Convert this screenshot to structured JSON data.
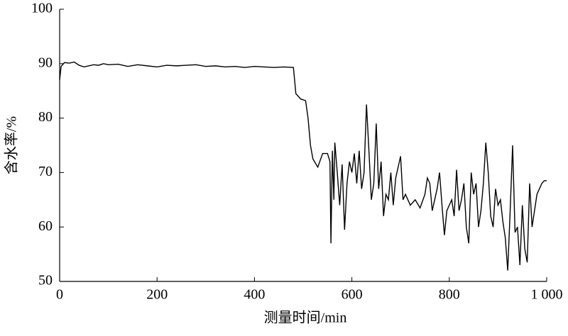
{
  "chart_data": {
    "type": "line",
    "xlabel": "测量时间/min",
    "ylabel": "含水率/%",
    "x": [
      0,
      3,
      10,
      20,
      30,
      40,
      50,
      60,
      70,
      80,
      90,
      100,
      120,
      140,
      160,
      180,
      200,
      220,
      240,
      260,
      280,
      300,
      320,
      340,
      360,
      380,
      400,
      420,
      440,
      460,
      480,
      485,
      495,
      505,
      510,
      515,
      520,
      530,
      540,
      550,
      555,
      557,
      560,
      563,
      565,
      570,
      575,
      580,
      585,
      590,
      595,
      600,
      605,
      610,
      615,
      620,
      625,
      630,
      635,
      640,
      645,
      650,
      655,
      660,
      665,
      670,
      675,
      680,
      685,
      690,
      700,
      705,
      710,
      720,
      730,
      740,
      750,
      755,
      760,
      765,
      770,
      775,
      780,
      785,
      790,
      795,
      800,
      805,
      810,
      815,
      820,
      825,
      830,
      835,
      840,
      845,
      850,
      855,
      860,
      865,
      870,
      875,
      880,
      885,
      890,
      895,
      900,
      905,
      910,
      915,
      920,
      925,
      930,
      935,
      940,
      945,
      950,
      955,
      960,
      965,
      970,
      975,
      980,
      985,
      990,
      995,
      1000
    ],
    "series": [
      {
        "name": "含水率",
        "color": "#000000",
        "values": [
          87,
          89.5,
          90.2,
          90.1,
          90.3,
          89.7,
          89.4,
          89.6,
          89.8,
          89.7,
          90,
          89.8,
          89.9,
          89.5,
          89.8,
          89.6,
          89.4,
          89.7,
          89.6,
          89.7,
          89.8,
          89.5,
          89.6,
          89.4,
          89.5,
          89.3,
          89.5,
          89.4,
          89.3,
          89.4,
          89.3,
          84.5,
          83.5,
          83.2,
          80,
          75,
          72.5,
          71,
          73.5,
          73.5,
          72,
          57,
          74,
          65,
          75.5,
          70,
          64,
          71.5,
          59.5,
          68,
          72,
          70,
          73.5,
          68,
          74,
          67,
          70,
          82.5,
          74,
          65,
          68,
          79,
          67,
          72,
          62,
          66,
          65,
          70,
          64,
          69,
          73,
          65,
          66,
          64,
          65,
          63.5,
          66,
          69,
          68,
          63,
          65,
          67,
          70,
          64,
          58.5,
          63,
          64,
          65,
          62,
          70.5,
          63,
          65,
          68,
          60,
          57,
          70,
          66,
          68,
          60,
          63,
          68,
          75.5,
          70,
          62,
          60,
          67,
          64,
          65,
          61,
          58,
          52,
          63,
          75,
          59,
          60,
          53,
          64,
          56,
          53.5,
          68,
          60,
          63,
          66,
          67,
          68,
          68.5,
          68.5
        ]
      }
    ],
    "xlim": [
      0,
      1000
    ],
    "ylim": [
      50,
      100
    ],
    "xticks": [
      0,
      200,
      400,
      600,
      800,
      {
        "value": 1000,
        "label": "1 000"
      }
    ],
    "yticks": [
      50,
      60,
      70,
      80,
      90,
      100
    ]
  }
}
